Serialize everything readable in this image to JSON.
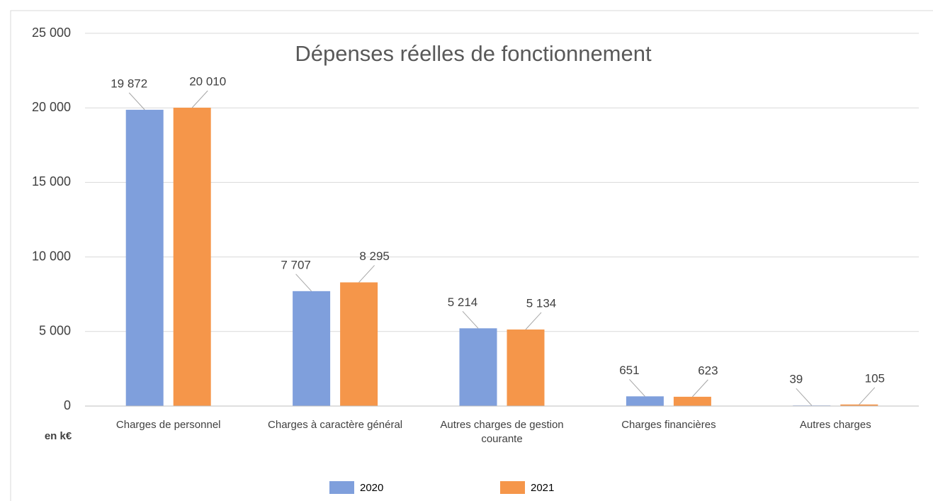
{
  "chart_data": {
    "type": "bar",
    "title": "Dépenses réelles de fonctionnement",
    "unit_label": "en k€",
    "categories": [
      "Charges de personnel",
      "Charges à caractère général",
      "Autres charges de gestion courante",
      "Charges financières",
      "Autres charges"
    ],
    "series": [
      {
        "name": "2020",
        "color": "#7f9fdc",
        "values": [
          19872,
          7707,
          5214,
          651,
          39
        ],
        "value_labels": [
          "19 872",
          "7 707",
          "5 214",
          "651",
          "39"
        ]
      },
      {
        "name": "2021",
        "color": "#f5964a",
        "values": [
          20010,
          8295,
          5134,
          623,
          105
        ],
        "value_labels": [
          "20 010",
          "8 295",
          "5 134",
          "623",
          "105"
        ]
      }
    ],
    "ylim": [
      0,
      25000
    ],
    "yticks": [
      0,
      {
        "value": 5000,
        "label": "5 000"
      },
      {
        "value": 10000,
        "label": "10 000"
      },
      {
        "value": 15000,
        "label": "15 000"
      },
      {
        "value": 20000,
        "label": "20 000"
      },
      {
        "value": 25000,
        "label": "25 000"
      }
    ],
    "grid": true,
    "legend": "bottom"
  }
}
